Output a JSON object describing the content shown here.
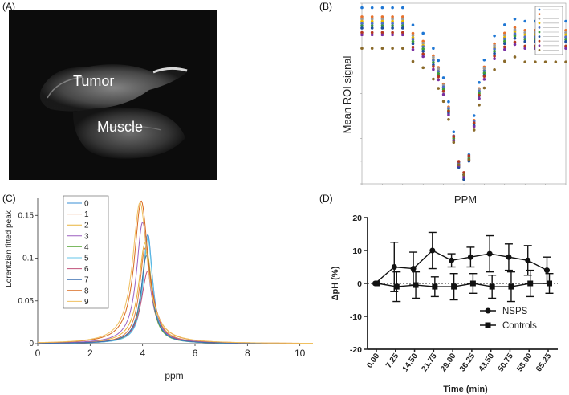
{
  "panels": {
    "a": {
      "label": "(A)",
      "tumor": "Tumor",
      "muscle": "Muscle"
    },
    "b": {
      "label": "(B)"
    },
    "c": {
      "label": "(C)"
    },
    "d": {
      "label": "(D)"
    }
  },
  "chart_data": [
    {
      "id": "B",
      "type": "scatter",
      "title": "",
      "xlabel": "PPM",
      "ylabel": "Mean ROI signal",
      "xlim": [
        10,
        -10
      ],
      "ylim": [
        0,
        80
      ],
      "tick_labels_note": "tick labels too small to read",
      "legend_entries_note": "10 entries, text too small to read",
      "series_colors": [
        "#1f77d4",
        "#e8712b",
        "#9a9a9a",
        "#e6b800",
        "#4f6ec4",
        "#3e9d3a",
        "#1f4fa0",
        "#b5361e",
        "#7a2fa0",
        "#8a6a2a"
      ],
      "x": [
        10,
        9,
        8,
        7,
        6,
        5,
        4,
        3,
        2.5,
        2,
        1.5,
        1,
        0.5,
        0,
        -0.5,
        -1,
        -1.5,
        -2,
        -3,
        -4,
        -5,
        -6,
        -7,
        -8,
        -9,
        -10
      ],
      "baselines": [
        78,
        74,
        73,
        72,
        71,
        70,
        69,
        67,
        66,
        60
      ],
      "floors": [
        4,
        3,
        3,
        2,
        4,
        3,
        2,
        5,
        3,
        4
      ]
    },
    {
      "id": "C",
      "type": "line",
      "xlabel": "ppm",
      "ylabel": "Lorentzian fitted peak",
      "xlim": [
        0,
        10.5
      ],
      "ylim": [
        0,
        0.17
      ],
      "xticks": [
        "0",
        "2",
        "4",
        "6",
        "8",
        "10"
      ],
      "yticks": [
        "0",
        "0.05",
        "0.1",
        "0.15"
      ],
      "legend": [
        "0",
        "1",
        "2",
        "3",
        "4",
        "5",
        "6",
        "7",
        "8",
        "9"
      ],
      "colors": [
        "#3a8fd6",
        "#e07b3a",
        "#e8b33a",
        "#9c5fbf",
        "#6ab04c",
        "#63c5e8",
        "#c0507a",
        "#3a6fb0",
        "#d96a1e",
        "#f0c060"
      ],
      "centers": [
        4.2,
        4.1,
        4.1,
        4.0,
        4.15,
        4.2,
        4.2,
        4.15,
        3.95,
        3.9
      ],
      "peaks": [
        0.128,
        0.112,
        0.118,
        0.142,
        0.108,
        0.123,
        0.085,
        0.103,
        0.167,
        0.165
      ],
      "widths": [
        0.22,
        0.26,
        0.3,
        0.28,
        0.24,
        0.22,
        0.3,
        0.26,
        0.32,
        0.34
      ]
    },
    {
      "id": "D",
      "type": "line",
      "xlabel": "Time (min)",
      "ylabel": "ΔpH (%)",
      "ylim": [
        -20,
        20
      ],
      "yticks": [
        "20",
        "10",
        "0",
        "-10",
        "-20"
      ],
      "categories": [
        "0.00",
        "7.25",
        "14.50",
        "21.75",
        "29.00",
        "36.25",
        "43.50",
        "50.75",
        "58.00",
        "65.25"
      ],
      "series": [
        {
          "name": "NSPS",
          "marker": "circle",
          "values": [
            0,
            5,
            4.5,
            10,
            7,
            8,
            9,
            8,
            7,
            4
          ],
          "err": [
            0,
            7.5,
            5,
            5.5,
            2,
            3,
            5.5,
            4,
            4.5,
            4
          ]
        },
        {
          "name": "Controls",
          "marker": "square",
          "values": [
            0,
            -1,
            -0.5,
            -1,
            -1,
            0,
            -1,
            -1,
            0,
            0
          ],
          "err": [
            0,
            4.5,
            4,
            3,
            4,
            3,
            3.5,
            4.5,
            4,
            3
          ]
        }
      ]
    }
  ]
}
